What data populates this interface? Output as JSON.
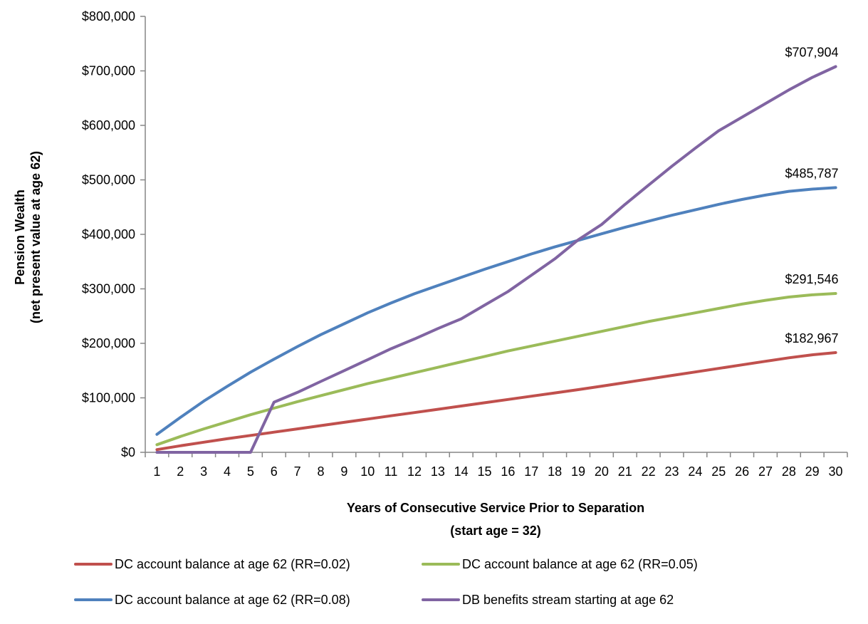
{
  "chart_data": {
    "type": "line",
    "title": "",
    "xlabel": "Years of Consecutive Service Prior to Separation",
    "xlabel_sub": "(start age = 32)",
    "ylabel": "Pension Wealth",
    "ylabel_sub": "(net present value at age 62)",
    "ylim": [
      0,
      800000
    ],
    "yticks": [
      0,
      100000,
      200000,
      300000,
      400000,
      500000,
      600000,
      700000,
      800000
    ],
    "ytick_labels": [
      "$0",
      "$100,000",
      "$200,000",
      "$300,000",
      "$400,000",
      "$500,000",
      "$600,000",
      "$700,000",
      "$800,000"
    ],
    "x": [
      1,
      2,
      3,
      4,
      5,
      6,
      7,
      8,
      9,
      10,
      11,
      12,
      13,
      14,
      15,
      16,
      17,
      18,
      19,
      20,
      21,
      22,
      23,
      24,
      25,
      26,
      27,
      28,
      29,
      30
    ],
    "grid": false,
    "legend_position": "bottom",
    "series": [
      {
        "name": "DC account balance at age 62 (RR=0.02)",
        "color": "#c0504d",
        "values": [
          5000,
          12000,
          18500,
          25000,
          31000,
          37000,
          43000,
          49000,
          55000,
          61000,
          67000,
          73000,
          79000,
          85000,
          91000,
          97000,
          103000,
          109000,
          115000,
          121500,
          128000,
          134500,
          141000,
          147500,
          154000,
          160500,
          167000,
          173500,
          179000,
          182967
        ],
        "end_label": "$182,967"
      },
      {
        "name": "DC account balance at age 62 (RR=0.05)",
        "color": "#9bbb59",
        "values": [
          14000,
          29000,
          43000,
          56000,
          69000,
          81000,
          93000,
          104000,
          115000,
          126000,
          136000,
          146000,
          156000,
          166000,
          176000,
          186000,
          195000,
          204000,
          213000,
          222000,
          231000,
          240000,
          248000,
          256000,
          264000,
          272000,
          279000,
          285000,
          289000,
          291546
        ],
        "end_label": "$291,546"
      },
      {
        "name": "DC account balance at age 62 (RR=0.08)",
        "color": "#4f81bd",
        "values": [
          33000,
          64000,
          94000,
          121000,
          147000,
          171000,
          194000,
          216000,
          236000,
          256000,
          274000,
          291000,
          306000,
          321000,
          336000,
          350000,
          364000,
          377000,
          389000,
          401000,
          413000,
          424000,
          435000,
          445000,
          455000,
          464000,
          472000,
          479000,
          483000,
          485787
        ],
        "end_label": "$485,787"
      },
      {
        "name": "DB benefits stream starting at age 62",
        "color": "#8064a2",
        "values": [
          0,
          0,
          0,
          0,
          0,
          92000,
          110000,
          130000,
          150000,
          170000,
          190000,
          208000,
          227000,
          245000,
          270000,
          295000,
          325000,
          355000,
          390000,
          418000,
          455000,
          490000,
          525000,
          558000,
          590000,
          615000,
          640000,
          665000,
          688000,
          707904
        ],
        "end_label": "$707,904"
      }
    ]
  }
}
